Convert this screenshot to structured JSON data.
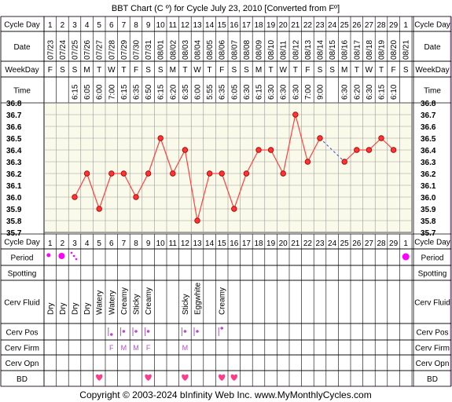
{
  "chart_title": "BBT Chart (C º) for Cycle July 23, 2010  [Converted from Fº]",
  "copyright": "Copyright © 2003-2024 bInfinity Web Inc.     www.MyMonthlyCycles.com",
  "row_labels": {
    "cycle_day": "Cycle Day",
    "date": "Date",
    "weekday": "WeekDay",
    "time": "Time",
    "period": "Period",
    "spotting": "Spotting",
    "cerv_fluid": "Cerv Fluid",
    "cerv_pos": "Cerv Pos",
    "cerv_firm": "Cerv Firm",
    "cerv_opn": "Cerv Opn",
    "bd": "BD"
  },
  "columns": [
    {
      "cycle_day": "1",
      "date": "07/23",
      "weekday": "F",
      "time": "",
      "temp": null,
      "period": "light",
      "cerv_fluid": "Dry",
      "cerv_pos": "",
      "cerv_firm": "",
      "bd": false
    },
    {
      "cycle_day": "2",
      "date": "07/24",
      "weekday": "S",
      "time": "",
      "temp": null,
      "period": "medium",
      "cerv_fluid": "Dry",
      "cerv_pos": "",
      "cerv_firm": "",
      "bd": false
    },
    {
      "cycle_day": "3",
      "date": "07/25",
      "weekday": "S",
      "time": "6:15",
      "temp": 36.0,
      "period": "spotting",
      "cerv_fluid": "Dry",
      "cerv_pos": "",
      "cerv_firm": "",
      "bd": false
    },
    {
      "cycle_day": "4",
      "date": "07/26",
      "weekday": "M",
      "time": "6:05",
      "temp": 36.2,
      "period": "",
      "cerv_fluid": "Dry",
      "cerv_pos": "",
      "cerv_firm": "",
      "bd": false
    },
    {
      "cycle_day": "5",
      "date": "07/27",
      "weekday": "T",
      "time": "6:00",
      "temp": 35.9,
      "period": "",
      "cerv_fluid": "Watery",
      "cerv_pos": "",
      "cerv_firm": "",
      "bd": true
    },
    {
      "cycle_day": "6",
      "date": "07/28",
      "weekday": "W",
      "time": "7:00",
      "temp": 36.2,
      "period": "",
      "cerv_fluid": "Watery",
      "cerv_pos": "low",
      "cerv_firm": "F",
      "bd": false
    },
    {
      "cycle_day": "7",
      "date": "07/29",
      "weekday": "T",
      "time": "6:15",
      "temp": 36.2,
      "period": "",
      "cerv_fluid": "Creamy",
      "cerv_pos": "mid",
      "cerv_firm": "M",
      "bd": false
    },
    {
      "cycle_day": "8",
      "date": "07/30",
      "weekday": "F",
      "time": "6:35",
      "temp": 36.0,
      "period": "",
      "cerv_fluid": "Sticky",
      "cerv_pos": "mid",
      "cerv_firm": "M",
      "bd": false
    },
    {
      "cycle_day": "9",
      "date": "07/31",
      "weekday": "S",
      "time": "6:50",
      "temp": 36.2,
      "period": "",
      "cerv_fluid": "Creamy",
      "cerv_pos": "mid",
      "cerv_firm": "F",
      "bd": true
    },
    {
      "cycle_day": "10",
      "date": "08/01",
      "weekday": "S",
      "time": "6:15",
      "temp": 36.5,
      "period": "",
      "cerv_fluid": "",
      "cerv_pos": "",
      "cerv_firm": "",
      "bd": false
    },
    {
      "cycle_day": "11",
      "date": "08/02",
      "weekday": "M",
      "time": "6:20",
      "temp": 36.2,
      "period": "",
      "cerv_fluid": "",
      "cerv_pos": "",
      "cerv_firm": "",
      "bd": false
    },
    {
      "cycle_day": "12",
      "date": "08/03",
      "weekday": "T",
      "time": "6:35",
      "temp": 36.4,
      "period": "",
      "cerv_fluid": "Sticky",
      "cerv_pos": "mid",
      "cerv_firm": "M",
      "bd": true
    },
    {
      "cycle_day": "13",
      "date": "08/04",
      "weekday": "W",
      "time": "6:00",
      "temp": 35.8,
      "period": "",
      "cerv_fluid": "Eggwhite",
      "cerv_pos": "mid",
      "cerv_firm": "",
      "bd": false
    },
    {
      "cycle_day": "14",
      "date": "08/05",
      "weekday": "T",
      "time": "5:55",
      "temp": 36.2,
      "period": "",
      "cerv_fluid": "",
      "cerv_pos": "",
      "cerv_firm": "",
      "bd": false
    },
    {
      "cycle_day": "15",
      "date": "08/06",
      "weekday": "F",
      "time": "6:35",
      "temp": 36.2,
      "period": "",
      "cerv_fluid": "Creamy",
      "cerv_pos": "high",
      "cerv_firm": "",
      "bd": true
    },
    {
      "cycle_day": "16",
      "date": "08/07",
      "weekday": "S",
      "time": "6:05",
      "temp": 35.9,
      "period": "",
      "cerv_fluid": "",
      "cerv_pos": "",
      "cerv_firm": "",
      "bd": true
    },
    {
      "cycle_day": "17",
      "date": "08/08",
      "weekday": "S",
      "time": "6:30",
      "temp": 36.2,
      "period": "",
      "cerv_fluid": "",
      "cerv_pos": "",
      "cerv_firm": "",
      "bd": false
    },
    {
      "cycle_day": "18",
      "date": "08/09",
      "weekday": "M",
      "time": "6:15",
      "temp": 36.4,
      "period": "",
      "cerv_fluid": "",
      "cerv_pos": "",
      "cerv_firm": "",
      "bd": false
    },
    {
      "cycle_day": "19",
      "date": "08/10",
      "weekday": "T",
      "time": "6:30",
      "temp": 36.4,
      "period": "",
      "cerv_fluid": "",
      "cerv_pos": "",
      "cerv_firm": "",
      "bd": false
    },
    {
      "cycle_day": "20",
      "date": "08/11",
      "weekday": "W",
      "time": "6:30",
      "temp": 36.2,
      "period": "",
      "cerv_fluid": "",
      "cerv_pos": "",
      "cerv_firm": "",
      "bd": false
    },
    {
      "cycle_day": "21",
      "date": "08/12",
      "weekday": "T",
      "time": "6:30",
      "temp": 36.7,
      "period": "",
      "cerv_fluid": "",
      "cerv_pos": "",
      "cerv_firm": "",
      "bd": false
    },
    {
      "cycle_day": "22",
      "date": "08/13",
      "weekday": "F",
      "time": "7:00",
      "temp": 36.3,
      "period": "",
      "cerv_fluid": "",
      "cerv_pos": "",
      "cerv_firm": "",
      "bd": false
    },
    {
      "cycle_day": "23",
      "date": "08/14",
      "weekday": "S",
      "time": "9:00",
      "temp": 36.5,
      "period": "",
      "cerv_fluid": "",
      "cerv_pos": "",
      "cerv_firm": "",
      "bd": false
    },
    {
      "cycle_day": "24",
      "date": "08/15",
      "weekday": "S",
      "time": "",
      "temp": null,
      "period": "",
      "cerv_fluid": "",
      "cerv_pos": "",
      "cerv_firm": "",
      "bd": false
    },
    {
      "cycle_day": "25",
      "date": "08/16",
      "weekday": "M",
      "time": "6:30",
      "temp": 36.3,
      "period": "",
      "cerv_fluid": "",
      "cerv_pos": "",
      "cerv_firm": "",
      "bd": false
    },
    {
      "cycle_day": "26",
      "date": "08/17",
      "weekday": "T",
      "time": "6:20",
      "temp": 36.4,
      "period": "",
      "cerv_fluid": "",
      "cerv_pos": "",
      "cerv_firm": "",
      "bd": false
    },
    {
      "cycle_day": "27",
      "date": "08/18",
      "weekday": "W",
      "time": "6:30",
      "temp": 36.4,
      "period": "",
      "cerv_fluid": "",
      "cerv_pos": "",
      "cerv_firm": "",
      "bd": false
    },
    {
      "cycle_day": "28",
      "date": "08/19",
      "weekday": "T",
      "time": "6:15",
      "temp": 36.5,
      "period": "",
      "cerv_fluid": "",
      "cerv_pos": "",
      "cerv_firm": "",
      "bd": false
    },
    {
      "cycle_day": "29",
      "date": "08/20",
      "weekday": "F",
      "time": "6:10",
      "temp": 36.4,
      "period": "",
      "cerv_fluid": "",
      "cerv_pos": "",
      "cerv_firm": "",
      "bd": false
    },
    {
      "cycle_day": "1",
      "date": "08/21",
      "weekday": "S",
      "time": "",
      "temp": null,
      "period": "heavy",
      "cerv_fluid": "",
      "cerv_pos": "",
      "cerv_firm": "",
      "bd": false
    }
  ],
  "chart_data": {
    "type": "line",
    "title": "BBT Chart (C º) for Cycle July 23, 2010  [Converted from Fº]",
    "ylim": [
      35.7,
      36.8
    ],
    "yticks": [
      "36.8",
      "36.7",
      "36.6",
      "36.5",
      "36.4",
      "36.3",
      "36.2",
      "36.1",
      "36.0",
      "35.9",
      "35.8",
      "35.7"
    ],
    "x": [
      "07/23",
      "07/24",
      "07/25",
      "07/26",
      "07/27",
      "07/28",
      "07/29",
      "07/30",
      "07/31",
      "08/01",
      "08/02",
      "08/03",
      "08/04",
      "08/05",
      "08/06",
      "08/07",
      "08/08",
      "08/09",
      "08/10",
      "08/11",
      "08/12",
      "08/13",
      "08/14",
      "08/15",
      "08/16",
      "08/17",
      "08/18",
      "08/19",
      "08/20",
      "08/21"
    ],
    "series": [
      {
        "values": [
          null,
          null,
          36.0,
          36.2,
          35.9,
          36.2,
          36.2,
          36.0,
          36.2,
          36.5,
          36.2,
          36.4,
          35.8,
          36.2,
          36.2,
          35.9,
          36.2,
          36.4,
          36.4,
          36.2,
          36.7,
          36.3,
          36.5,
          null,
          36.3,
          36.4,
          36.4,
          36.5,
          36.4,
          null
        ]
      }
    ],
    "grid": true
  },
  "colors": {
    "line": "#ff4040",
    "point": "#ff3333",
    "period": "#ff00ff",
    "plot_bg": "#fafaea",
    "border": "#cc88cc",
    "bd": "#ff3b8c",
    "cerv": "#b052c6"
  }
}
